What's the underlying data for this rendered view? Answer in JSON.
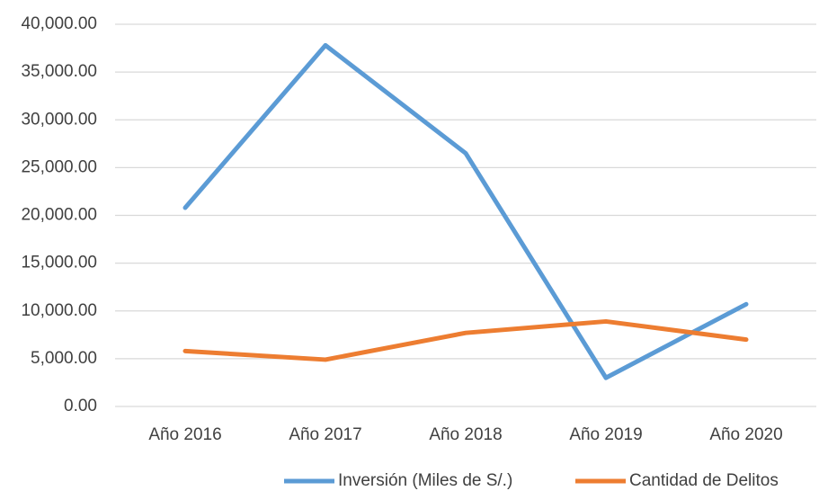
{
  "chart_data": {
    "type": "line",
    "categories": [
      "Año 2016",
      "Año 2017",
      "Año 2018",
      "Año 2019",
      "Año 2020"
    ],
    "series": [
      {
        "name": "Inversión (Miles de S/.)",
        "color": "#5b9bd5",
        "values": [
          20800,
          37800,
          26500,
          3000,
          10700
        ]
      },
      {
        "name": "Cantidad de Delitos",
        "color": "#ed7d31",
        "values": [
          5800,
          4900,
          7700,
          8900,
          7000
        ]
      }
    ],
    "ylim": [
      0,
      40000
    ],
    "yticks": [
      {
        "value": 0,
        "label": "0.00"
      },
      {
        "value": 5000,
        "label": "5,000.00"
      },
      {
        "value": 10000,
        "label": "10,000.00"
      },
      {
        "value": 15000,
        "label": "15,000.00"
      },
      {
        "value": 20000,
        "label": "20,000.00"
      },
      {
        "value": 25000,
        "label": "25,000.00"
      },
      {
        "value": 30000,
        "label": "30,000.00"
      },
      {
        "value": 35000,
        "label": "35,000.00"
      },
      {
        "value": 40000,
        "label": "40,000.00"
      }
    ],
    "grid": true,
    "legend": "bottom"
  }
}
